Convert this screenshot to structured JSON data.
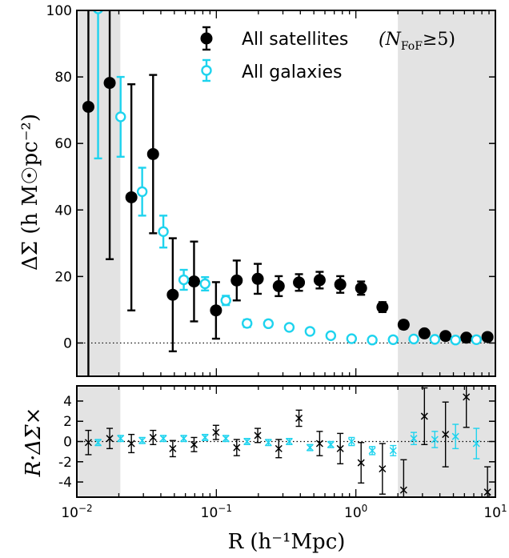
{
  "colors": {
    "satellites": "#000000",
    "galaxies": "#1ed3ee",
    "shade": "#e3e3e3"
  },
  "chart_data": [
    {
      "type": "scatter",
      "panel": "top",
      "xscale": "log",
      "xlim": [
        0.01,
        10
      ],
      "ylim": [
        -10,
        100
      ],
      "yticks": [
        0,
        20,
        40,
        60,
        80,
        100
      ],
      "ylabel": "ΔΣ (h M☉pc⁻²)",
      "legend_position": "top-right",
      "shaded_x_ranges": [
        [
          0.01,
          0.0205
        ],
        [
          2.0,
          10
        ]
      ],
      "reference_line_y": 0,
      "series": [
        {
          "name": "All satellites (N_FoF ≥5)",
          "legend_label": "All satellites",
          "legend_math": "(N",
          "legend_math_sub": "FoF",
          "legend_math_tail": "≥5)",
          "marker": "filled-circle",
          "x": [
            0.0121,
            0.0172,
            0.0246,
            0.0352,
            0.0487,
            0.0692,
            0.0994,
            0.14,
            0.198,
            0.28,
            0.391,
            0.55,
            0.773,
            1.09,
            1.55,
            2.2,
            3.1,
            4.39,
            6.19,
            8.78
          ],
          "y": [
            71.0,
            78.2,
            43.8,
            56.8,
            14.5,
            18.5,
            9.8,
            18.8,
            19.3,
            17.1,
            18.2,
            18.9,
            17.6,
            16.5,
            10.8,
            5.5,
            2.9,
            2.1,
            1.6,
            1.8
          ],
          "err": [
            90.0,
            53.0,
            34.0,
            23.8,
            17.0,
            12.0,
            8.5,
            6.0,
            4.5,
            3.0,
            2.5,
            2.5,
            2.5,
            2.0,
            1.5,
            1.2,
            1.0,
            0.9,
            0.9,
            0.8
          ]
        },
        {
          "name": "All galaxies",
          "legend_label": "All galaxies",
          "marker": "open-circle",
          "x": [
            0.0142,
            0.0206,
            0.0294,
            0.0417,
            0.0584,
            0.083,
            0.117,
            0.166,
            0.236,
            0.333,
            0.469,
            0.661,
            0.932,
            1.31,
            1.85,
            2.6,
            3.68,
            5.18,
            7.31
          ],
          "y": [
            100.5,
            68.0,
            45.5,
            33.5,
            19.0,
            17.8,
            12.8,
            5.9,
            5.8,
            4.7,
            3.5,
            2.2,
            1.3,
            0.9,
            1.0,
            1.2,
            1.1,
            0.9,
            1.0
          ],
          "err": [
            45.0,
            12.0,
            7.2,
            4.8,
            3.0,
            2.0,
            1.4,
            1.1,
            0.9,
            0.8,
            0.7,
            0.6,
            0.5,
            0.5,
            0.4,
            0.4,
            0.4,
            0.4,
            0.4
          ]
        }
      ]
    },
    {
      "type": "scatter",
      "panel": "bottom",
      "xscale": "log",
      "xlim": [
        0.01,
        10
      ],
      "ylim": [
        -5.5,
        5.5
      ],
      "yticks": [
        -4,
        -2,
        0,
        2,
        4
      ],
      "xticks": [
        0.01,
        0.1,
        1,
        10
      ],
      "xtick_base": "10",
      "xtick_exponents": [
        "−2",
        "−1",
        "0",
        "1"
      ],
      "ylabel": "R·ΔΣ×",
      "xlabel": "R (h⁻¹Mpc)",
      "shaded_x_ranges": [
        [
          0.01,
          0.0205
        ],
        [
          2.0,
          10
        ]
      ],
      "reference_line_y": 0,
      "series": [
        {
          "marker": "x",
          "x": [
            0.0121,
            0.0172,
            0.0246,
            0.0352,
            0.0487,
            0.0692,
            0.0994,
            0.14,
            0.198,
            0.28,
            0.391,
            0.55,
            0.773,
            1.09,
            1.55,
            2.2,
            3.1,
            4.39,
            6.19,
            8.78
          ],
          "y": [
            -0.1,
            0.3,
            -0.2,
            0.4,
            -0.7,
            -0.3,
            0.9,
            -0.6,
            0.6,
            -0.7,
            2.3,
            -0.2,
            -0.7,
            -2.1,
            -2.7,
            -4.8,
            2.5,
            0.7,
            4.4,
            -5.0
          ],
          "err": [
            1.2,
            1.0,
            0.9,
            0.7,
            0.8,
            0.7,
            0.7,
            0.8,
            0.7,
            0.9,
            0.8,
            1.2,
            1.5,
            2.0,
            2.5,
            3.0,
            2.8,
            3.2,
            3.0,
            2.5
          ]
        },
        {
          "marker": "x",
          "x": [
            0.0142,
            0.0206,
            0.0294,
            0.0417,
            0.0584,
            0.083,
            0.117,
            0.166,
            0.236,
            0.333,
            0.469,
            0.661,
            0.932,
            1.31,
            1.85,
            2.6,
            3.68,
            5.18,
            7.31
          ],
          "y": [
            -0.1,
            0.3,
            0.1,
            0.3,
            0.3,
            0.4,
            0.3,
            0.0,
            -0.1,
            0.0,
            -0.6,
            -0.3,
            0.0,
            -0.9,
            -0.9,
            0.3,
            0.2,
            0.5,
            -0.2
          ],
          "err": [
            0.3,
            0.3,
            0.3,
            0.3,
            0.3,
            0.3,
            0.3,
            0.3,
            0.3,
            0.3,
            0.3,
            0.3,
            0.4,
            0.4,
            0.5,
            0.6,
            0.8,
            1.2,
            1.5
          ]
        }
      ]
    }
  ]
}
